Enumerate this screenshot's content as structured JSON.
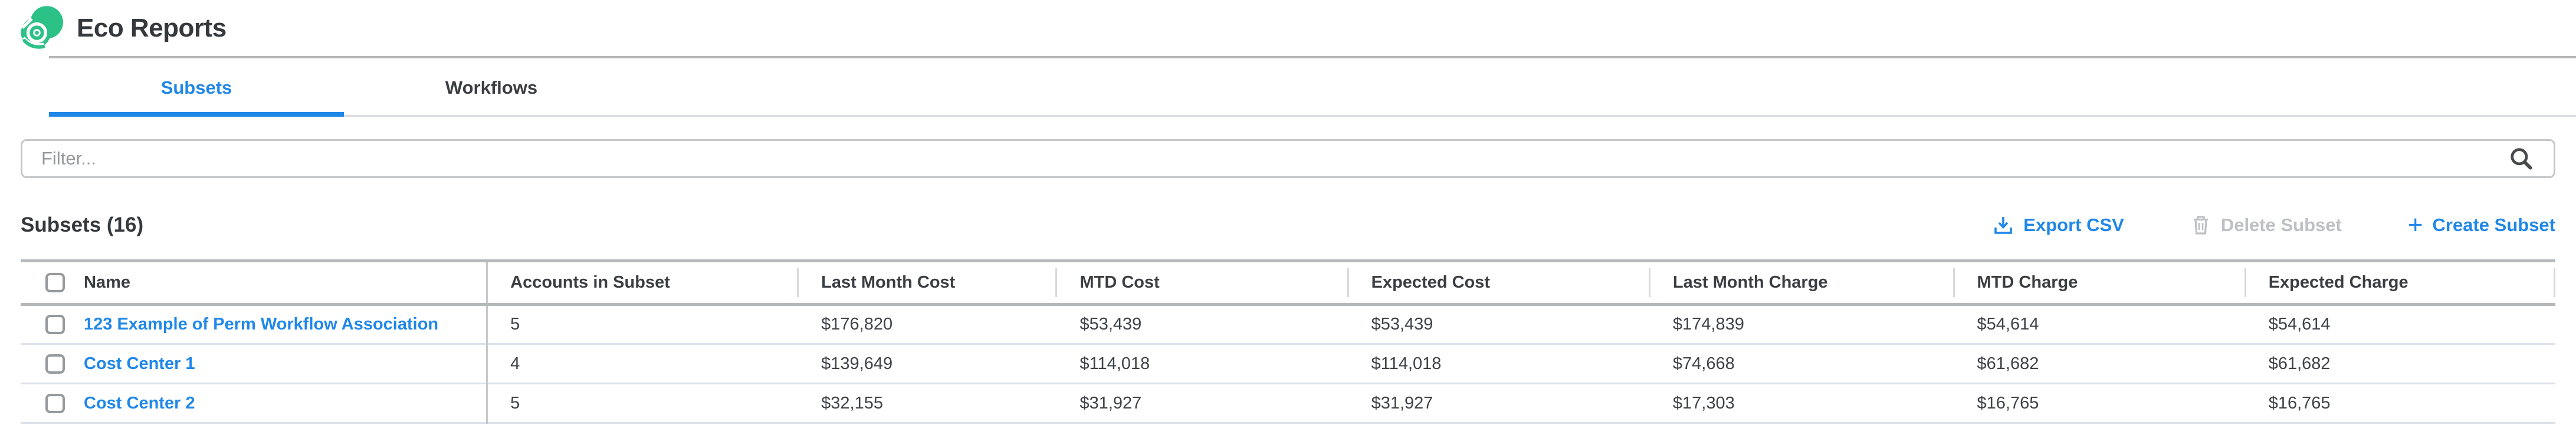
{
  "header": {
    "title": "Eco Reports",
    "logo_icon": "spot-swirl-icon"
  },
  "tabs": [
    {
      "label": "Subsets",
      "active": true
    },
    {
      "label": "Workflows",
      "active": false
    }
  ],
  "filter": {
    "placeholder": "Filter...",
    "value": "",
    "icon": "search-icon"
  },
  "section": {
    "title": "Subsets (16)",
    "count": 16
  },
  "actions": {
    "export": {
      "label": "Export CSV",
      "icon": "download-icon",
      "enabled": true
    },
    "delete": {
      "label": "Delete Subset",
      "icon": "trash-icon",
      "enabled": false
    },
    "create": {
      "label": "Create Subset",
      "icon": "plus-icon",
      "enabled": true
    }
  },
  "table": {
    "columns": [
      "Name",
      "Accounts in Subset",
      "Last Month Cost",
      "MTD Cost",
      "Expected Cost",
      "Last Month Charge",
      "MTD Charge",
      "Expected Charge"
    ],
    "column_widths_pct": [
      18.4,
      12.3,
      10.2,
      11.5,
      11.9,
      12.0,
      11.5,
      12.2
    ],
    "rows": [
      {
        "name": "123 Example of Perm Workflow Association",
        "checked": false,
        "values": [
          "5",
          "$176,820",
          "$53,439",
          "$53,439",
          "$174,839",
          "$54,614",
          "$54,614"
        ]
      },
      {
        "name": "Cost Center 1",
        "checked": false,
        "values": [
          "4",
          "$139,649",
          "$114,018",
          "$114,018",
          "$74,668",
          "$61,682",
          "$61,682"
        ]
      },
      {
        "name": "Cost Center 2",
        "checked": false,
        "values": [
          "5",
          "$32,155",
          "$31,927",
          "$31,927",
          "$17,303",
          "$16,765",
          "$16,765"
        ]
      }
    ]
  },
  "colors": {
    "accent_blue": "#1f87e8",
    "disabled_gray": "#bdc0c4",
    "logo_green": "#2bc187",
    "header_border": "#b6b9bc",
    "row_border": "#dce1ea"
  }
}
